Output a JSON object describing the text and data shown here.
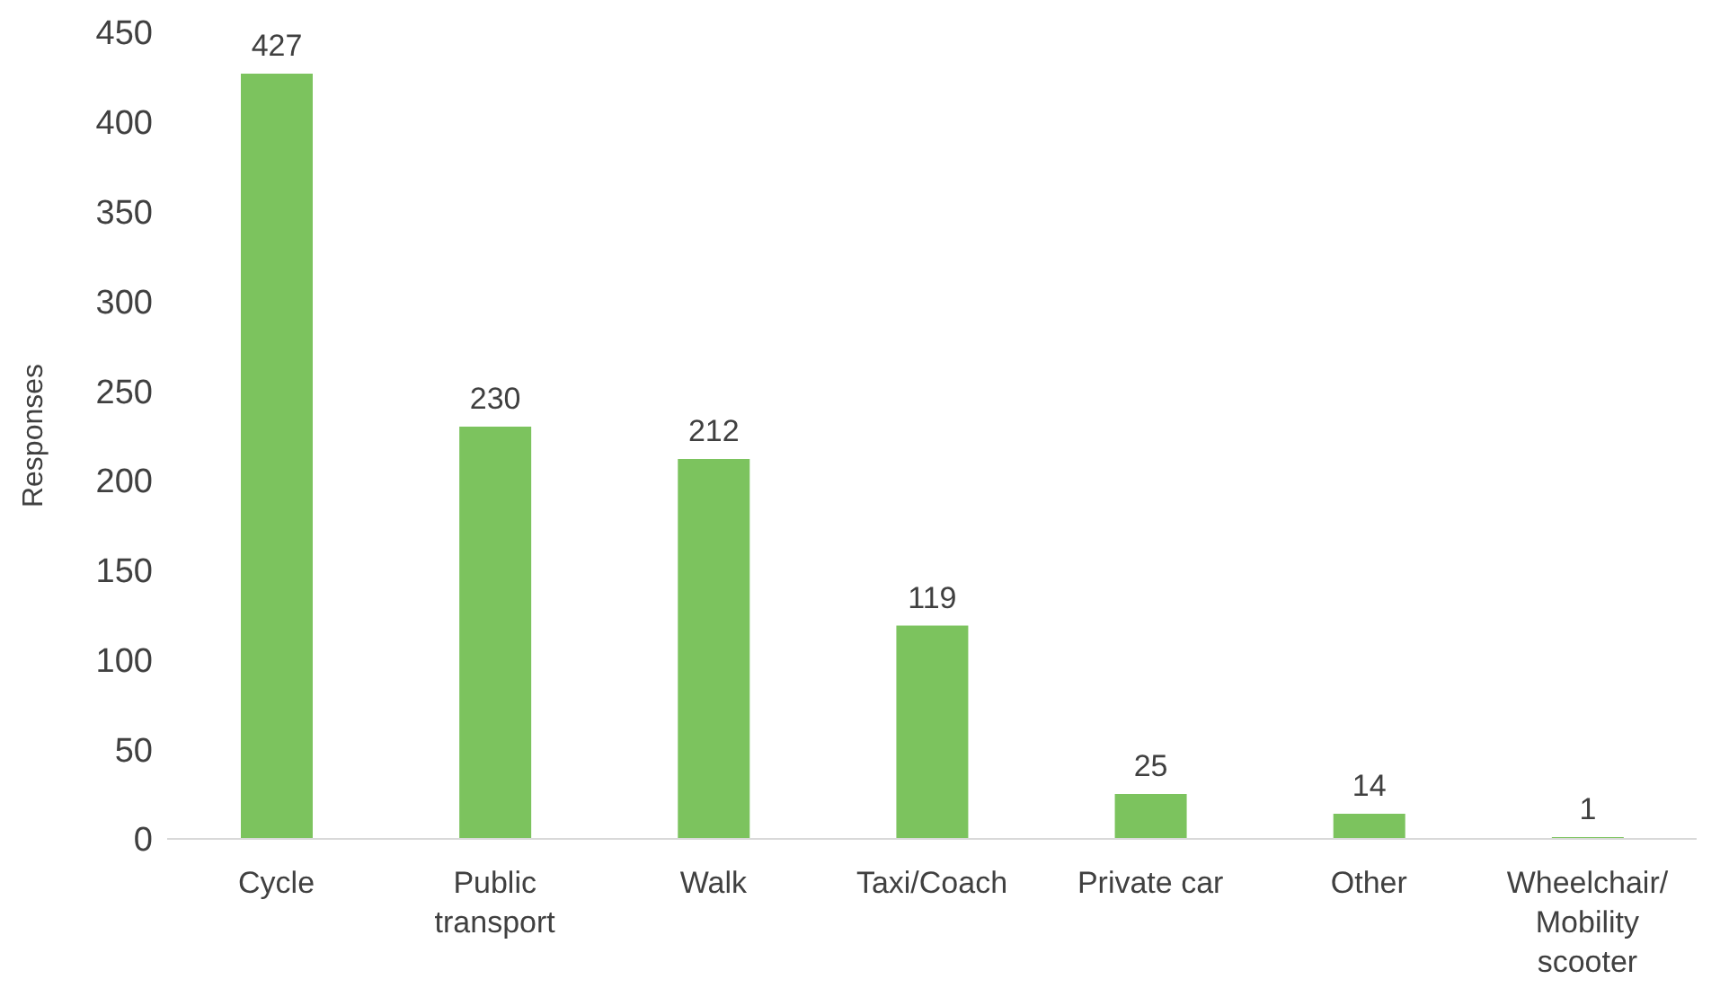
{
  "chart_data": {
    "type": "bar",
    "ylabel": "Responses",
    "categories": [
      "Cycle",
      "Public transport",
      "Walk",
      "Taxi/Coach",
      "Private car",
      "Other",
      "Wheelchair/Mobility scooter"
    ],
    "values": [
      427,
      230,
      212,
      119,
      25,
      14,
      1
    ],
    "color": "#7cc35e",
    "ylim": [
      0,
      450
    ],
    "yticks": [
      0,
      50,
      100,
      150,
      200,
      250,
      300,
      350,
      400,
      450
    ],
    "data_labels": true
  }
}
